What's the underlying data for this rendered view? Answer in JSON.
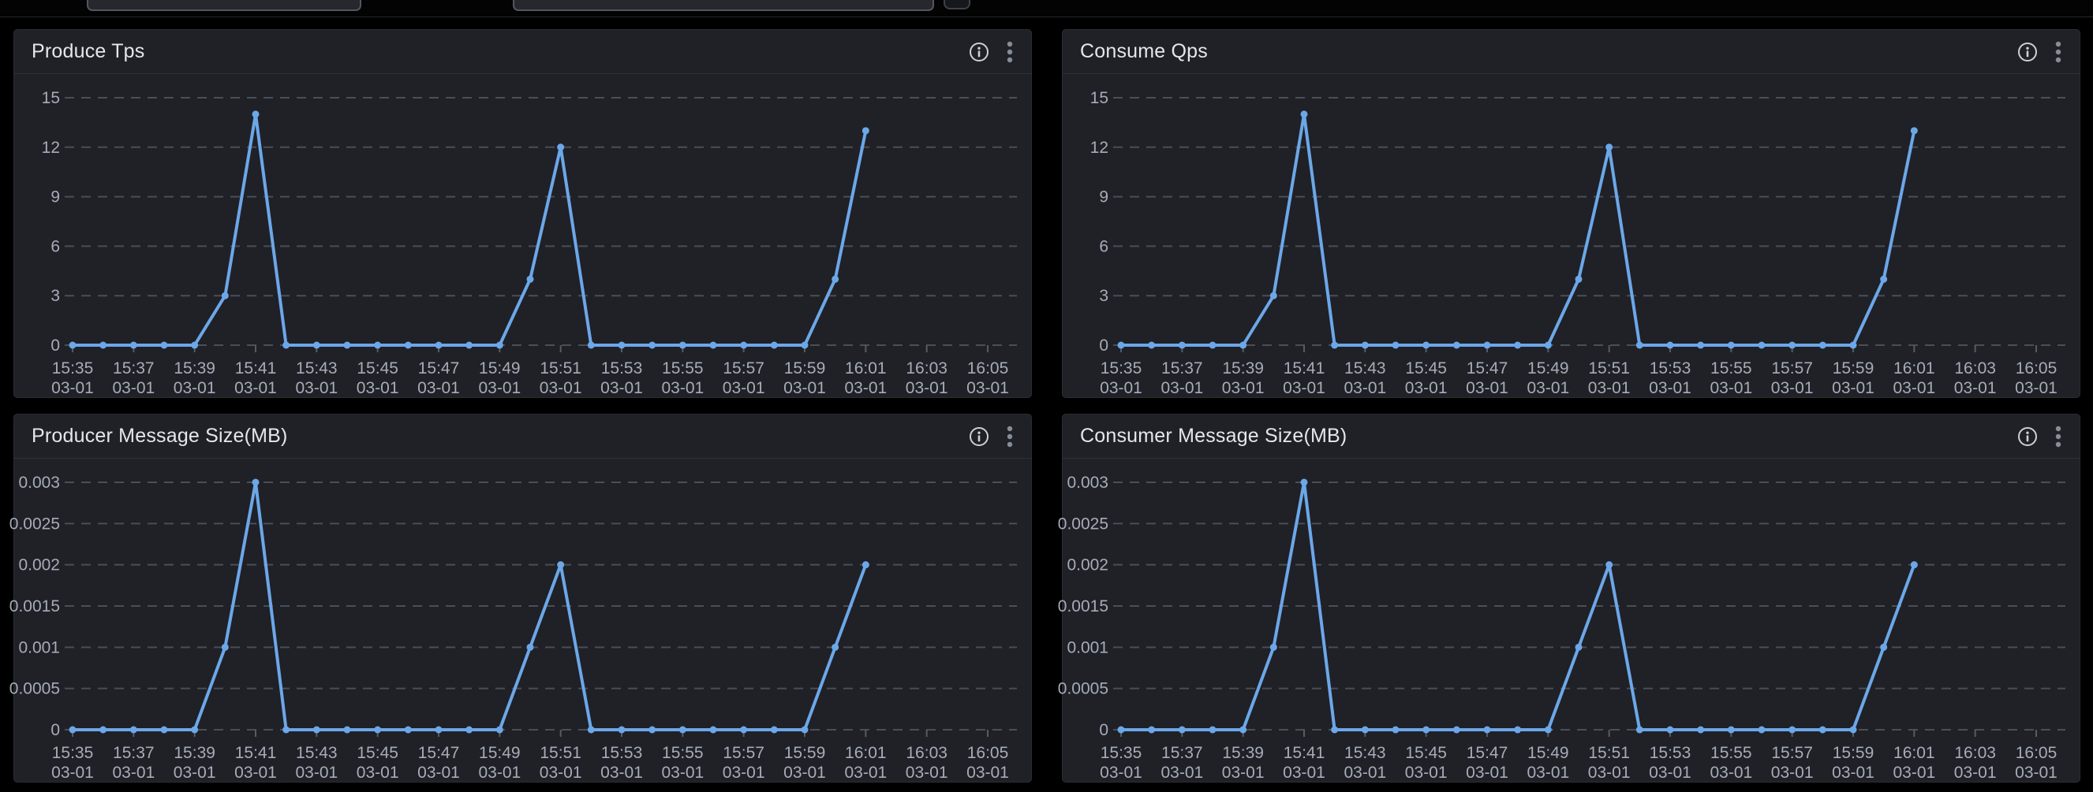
{
  "topbar": {
    "inputs": [
      {
        "value": "",
        "placeholder": ""
      },
      {
        "value": "",
        "placeholder": ""
      }
    ]
  },
  "colors": {
    "page_bg": "#000000",
    "panel_bg": "#1f2127",
    "title_text": "#e4e7eb",
    "axis_text": "#a6acb8",
    "grid": "#4a4e56",
    "tick": "#565b63",
    "line": "#6ca7e8"
  },
  "panels": [
    {
      "info_icon": "info-circle",
      "menu_icon": "kebab-vertical"
    },
    {
      "info_icon": "info-circle",
      "menu_icon": "kebab-vertical"
    },
    {
      "info_icon": "info-circle",
      "menu_icon": "kebab-vertical"
    },
    {
      "info_icon": "info-circle",
      "menu_icon": "kebab-vertical"
    }
  ],
  "chart_data": [
    {
      "type": "line",
      "title": "Produce Tps",
      "xlabel": "",
      "ylabel": "",
      "ylim": [
        0,
        15
      ],
      "y_ticks": [
        "0",
        "3",
        "6",
        "9",
        "12",
        "15"
      ],
      "grid": "dashed",
      "legend": "none",
      "start_time": "15:35",
      "interval_minutes": 1,
      "x_total_minutes": 30,
      "x_tick_labels": [
        "15:35",
        "15:37",
        "15:39",
        "15:41",
        "15:43",
        "15:45",
        "15:47",
        "15:49",
        "15:51",
        "15:53",
        "15:55",
        "15:57",
        "15:59",
        "16:01",
        "16:03",
        "16:05"
      ],
      "x_tick_sublabel": "03-01",
      "series": [
        {
          "name": "Produce Tps",
          "color": "#6ca7e8",
          "values": [
            0,
            0,
            0,
            0,
            0,
            3,
            14,
            0,
            0,
            0,
            0,
            0,
            0,
            0,
            0,
            4,
            12,
            0,
            0,
            0,
            0,
            0,
            0,
            0,
            0,
            4,
            13
          ]
        }
      ]
    },
    {
      "type": "line",
      "title": "Consume Qps",
      "xlabel": "",
      "ylabel": "",
      "ylim": [
        0,
        15
      ],
      "y_ticks": [
        "0",
        "3",
        "6",
        "9",
        "12",
        "15"
      ],
      "grid": "dashed",
      "legend": "none",
      "start_time": "15:35",
      "interval_minutes": 1,
      "x_total_minutes": 30,
      "x_tick_labels": [
        "15:35",
        "15:37",
        "15:39",
        "15:41",
        "15:43",
        "15:45",
        "15:47",
        "15:49",
        "15:51",
        "15:53",
        "15:55",
        "15:57",
        "15:59",
        "16:01",
        "16:03",
        "16:05"
      ],
      "x_tick_sublabel": "03-01",
      "series": [
        {
          "name": "Consume Qps",
          "color": "#6ca7e8",
          "values": [
            0,
            0,
            0,
            0,
            0,
            3,
            14,
            0,
            0,
            0,
            0,
            0,
            0,
            0,
            0,
            4,
            12,
            0,
            0,
            0,
            0,
            0,
            0,
            0,
            0,
            4,
            13
          ]
        }
      ]
    },
    {
      "type": "line",
      "title": "Producer Message Size(MB)",
      "xlabel": "",
      "ylabel": "",
      "ylim": [
        0,
        0.003
      ],
      "y_ticks": [
        "0",
        "0.0005",
        "0.001",
        "0.0015",
        "0.002",
        "0.0025",
        "0.003"
      ],
      "grid": "dashed",
      "legend": "none",
      "start_time": "15:35",
      "interval_minutes": 1,
      "x_total_minutes": 30,
      "x_tick_labels": [
        "15:35",
        "15:37",
        "15:39",
        "15:41",
        "15:43",
        "15:45",
        "15:47",
        "15:49",
        "15:51",
        "15:53",
        "15:55",
        "15:57",
        "15:59",
        "16:01",
        "16:03",
        "16:05"
      ],
      "x_tick_sublabel": "03-01",
      "series": [
        {
          "name": "Producer Message Size(MB)",
          "color": "#6ca7e8",
          "values": [
            0,
            0,
            0,
            0,
            0,
            0.001,
            0.003,
            0,
            0,
            0,
            0,
            0,
            0,
            0,
            0,
            0.001,
            0.002,
            0,
            0,
            0,
            0,
            0,
            0,
            0,
            0,
            0.001,
            0.002
          ]
        }
      ]
    },
    {
      "type": "line",
      "title": "Consumer Message Size(MB)",
      "xlabel": "",
      "ylabel": "",
      "ylim": [
        0,
        0.003
      ],
      "y_ticks": [
        "0",
        "0.0005",
        "0.001",
        "0.0015",
        "0.002",
        "0.0025",
        "0.003"
      ],
      "grid": "dashed",
      "legend": "none",
      "start_time": "15:35",
      "interval_minutes": 1,
      "x_total_minutes": 30,
      "x_tick_labels": [
        "15:35",
        "15:37",
        "15:39",
        "15:41",
        "15:43",
        "15:45",
        "15:47",
        "15:49",
        "15:51",
        "15:53",
        "15:55",
        "15:57",
        "15:59",
        "16:01",
        "16:03",
        "16:05"
      ],
      "x_tick_sublabel": "03-01",
      "series": [
        {
          "name": "Consumer Message Size(MB)",
          "color": "#6ca7e8",
          "values": [
            0,
            0,
            0,
            0,
            0,
            0.001,
            0.003,
            0,
            0,
            0,
            0,
            0,
            0,
            0,
            0,
            0.001,
            0.002,
            0,
            0,
            0,
            0,
            0,
            0,
            0,
            0,
            0.001,
            0.002
          ]
        }
      ]
    }
  ]
}
